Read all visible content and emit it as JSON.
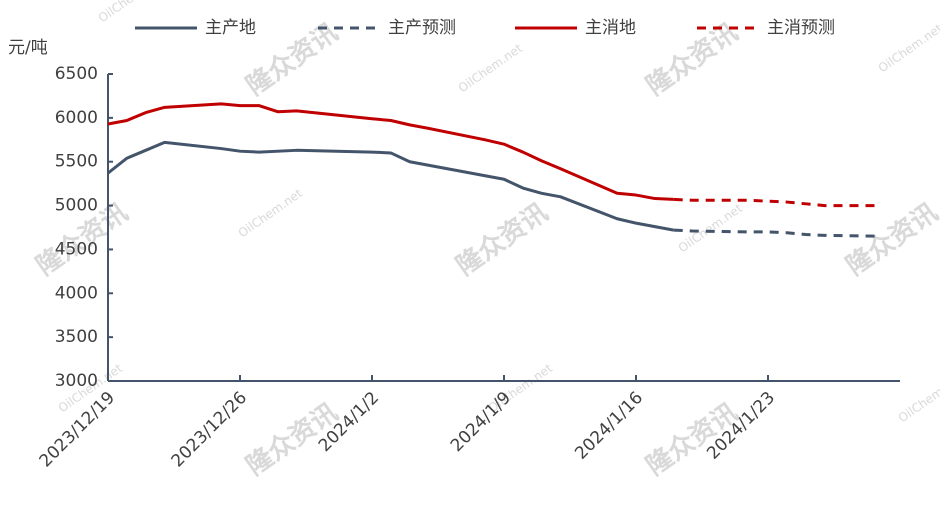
{
  "chart_data": {
    "type": "line",
    "y_unit": "元/吨",
    "watermarks": [
      "隆众资讯",
      "OilChem.net"
    ],
    "xlim": [
      "2023/12/19",
      "2024/1/30"
    ],
    "xticks": [
      "2023/12/19",
      "2023/12/26",
      "2024/1/2",
      "2024/1/9",
      "2024/1/16",
      "2024/1/23"
    ],
    "ylim": [
      3000,
      6500
    ],
    "yticks": [
      3000,
      3500,
      4000,
      4500,
      5000,
      5500,
      6000,
      6500
    ],
    "series": [
      {
        "name": "主产地",
        "color": "#44546a",
        "dashed": false,
        "x": [
          "2023/12/19",
          "2023/12/20",
          "2023/12/21",
          "2023/12/22",
          "2023/12/25",
          "2023/12/26",
          "2023/12/27",
          "2023/12/29",
          "2024/1/2",
          "2024/1/3",
          "2024/1/4",
          "2024/1/5",
          "2024/1/8",
          "2024/1/9",
          "2024/1/10",
          "2024/1/11",
          "2024/1/12",
          "2024/1/15",
          "2024/1/16",
          "2024/1/17",
          "2024/1/18"
        ],
        "values": [
          5370,
          5540,
          5630,
          5720,
          5650,
          5620,
          5610,
          5630,
          5610,
          5600,
          5500,
          5460,
          5340,
          5300,
          5200,
          5140,
          5100,
          4850,
          4800,
          4760,
          4720
        ]
      },
      {
        "name": "主产预测",
        "color": "#44546a",
        "dashed": true,
        "x": [
          "2024/1/18",
          "2024/1/19",
          "2024/1/22",
          "2024/1/23",
          "2024/1/24",
          "2024/1/25",
          "2024/1/26",
          "2024/1/29"
        ],
        "values": [
          4720,
          4710,
          4700,
          4700,
          4690,
          4670,
          4660,
          4650
        ]
      },
      {
        "name": "主消地",
        "color": "#c00000",
        "dashed": false,
        "x": [
          "2023/12/19",
          "2023/12/20",
          "2023/12/21",
          "2023/12/22",
          "2023/12/25",
          "2023/12/26",
          "2023/12/27",
          "2023/12/28",
          "2023/12/29",
          "2024/1/2",
          "2024/1/3",
          "2024/1/4",
          "2024/1/5",
          "2024/1/8",
          "2024/1/9",
          "2024/1/10",
          "2024/1/11",
          "2024/1/12",
          "2024/1/15",
          "2024/1/16",
          "2024/1/17",
          "2024/1/18"
        ],
        "values": [
          5930,
          5970,
          6060,
          6120,
          6160,
          6140,
          6140,
          6070,
          6080,
          5990,
          5970,
          5920,
          5880,
          5750,
          5700,
          5610,
          5510,
          5420,
          5140,
          5120,
          5080,
          5070
        ]
      },
      {
        "name": "主消预测",
        "color": "#c00000",
        "dashed": true,
        "x": [
          "2024/1/18",
          "2024/1/19",
          "2024/1/22",
          "2024/1/23",
          "2024/1/24",
          "2024/1/25",
          "2024/1/26",
          "2024/1/29"
        ],
        "values": [
          5070,
          5060,
          5060,
          5050,
          5040,
          5020,
          5000,
          5000
        ]
      }
    ]
  }
}
